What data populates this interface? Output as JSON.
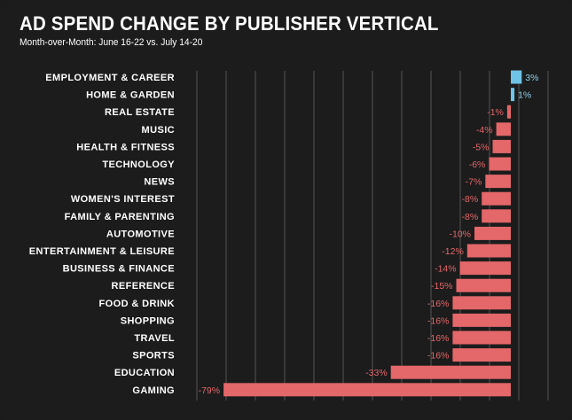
{
  "chart_data": {
    "type": "bar",
    "orientation": "horizontal",
    "title": "AD SPEND CHANGE BY PUBLISHER VERTICAL",
    "subtitle": "Month-over-Month: June 16-22 vs. July 14-20",
    "categories": [
      "EMPLOYMENT & CAREER",
      "HOME & GARDEN",
      "REAL ESTATE",
      "MUSIC",
      "HEALTH & FITNESS",
      "TECHNOLOGY",
      "NEWS",
      "WOMEN'S INTEREST",
      "FAMILY & PARENTING",
      "AUTOMOTIVE",
      "ENTERTAINMENT & LEISURE",
      "BUSINESS & FINANCE",
      "REFERENCE",
      "FOOD & DRINK",
      "SHOPPING",
      "TRAVEL",
      "SPORTS",
      "EDUCATION",
      "GAMING"
    ],
    "values": [
      3,
      1,
      -1,
      -4,
      -5,
      -6,
      -7,
      -8,
      -8,
      -10,
      -12,
      -14,
      -15,
      -16,
      -16,
      -16,
      -16,
      -33,
      -79
    ],
    "labels": [
      "3%",
      "1%",
      "-1%",
      "-4%",
      "-5%",
      "-6%",
      "-7%",
      "-8%",
      "-8%",
      "-10%",
      "-12%",
      "-14%",
      "-15%",
      "-16%",
      "-16%",
      "-16%",
      "-16%",
      "-33%",
      "-79%"
    ],
    "unit": "%",
    "xlim": [
      -80,
      10
    ],
    "grid": true,
    "colors": {
      "positive": "#6ec3e6",
      "negative": "#e46769",
      "positive_label": "#8fcfea",
      "negative_label": "#e46769",
      "grid": "#555555",
      "category_text": "#ffffff"
    }
  }
}
